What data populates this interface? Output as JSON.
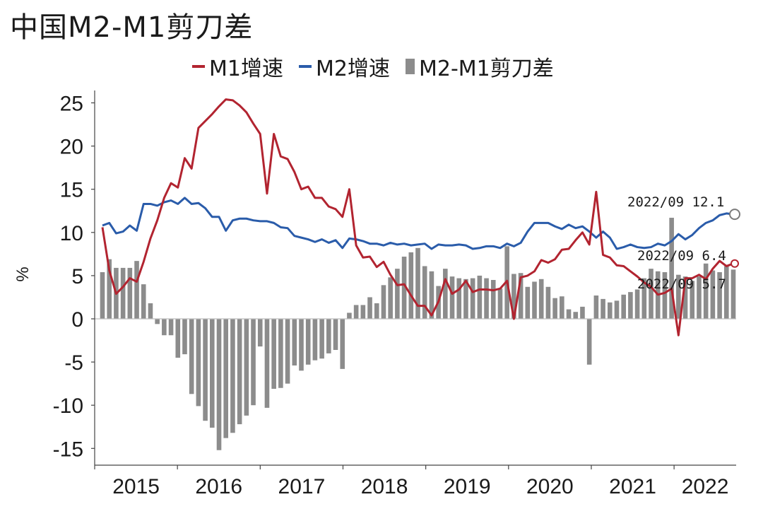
{
  "title": "中国M2-M1剪刀差",
  "legend": [
    {
      "label": "M1增速",
      "color": "#b22430",
      "kind": "line"
    },
    {
      "label": "M2增速",
      "color": "#2a5caa",
      "kind": "line"
    },
    {
      "label": "M2-M1剪刀差",
      "color": "#8c8c8c",
      "kind": "bar"
    }
  ],
  "chart_data": {
    "type": "bar+line",
    "title": "中国M2-M1剪刀差",
    "ylabel": "%",
    "ylim": [
      -16,
      26
    ],
    "yticks": [
      25,
      20,
      15,
      10,
      5,
      0,
      -5,
      -10,
      -15
    ],
    "xstart": "2015-01",
    "xend": "2022-09",
    "xtick_labels": [
      "2015",
      "2016",
      "2017",
      "2018",
      "2019",
      "2020",
      "2021",
      "2022"
    ],
    "series": [
      {
        "name": "M1增速",
        "type": "line",
        "color": "#b22430",
        "values": [
          10.6,
          5.6,
          2.9,
          3.7,
          4.7,
          4.3,
          6.6,
          9.3,
          11.4,
          14.0,
          15.7,
          15.2,
          18.6,
          17.4,
          22.1,
          22.9,
          23.7,
          24.6,
          25.4,
          25.3,
          24.7,
          23.9,
          22.6,
          21.4,
          14.5,
          21.4,
          18.8,
          18.5,
          17.0,
          15.0,
          15.3,
          14.0,
          14.0,
          13.0,
          12.7,
          11.8,
          15.0,
          8.5,
          7.1,
          7.2,
          6.0,
          6.6,
          5.1,
          3.9,
          4.0,
          2.7,
          1.5,
          1.5,
          0.4,
          2.0,
          4.6,
          2.9,
          3.4,
          4.4,
          3.1,
          3.4,
          3.4,
          3.3,
          3.5,
          4.4,
          0.0,
          4.8,
          5.0,
          5.5,
          6.8,
          6.5,
          6.9,
          8.0,
          8.1,
          9.1,
          10.0,
          8.6,
          14.7,
          7.4,
          7.1,
          6.2,
          6.1,
          5.5,
          4.9,
          4.2,
          3.7,
          2.8,
          3.0,
          3.5,
          -1.9,
          4.7,
          4.7,
          5.1,
          4.6,
          5.8,
          6.7,
          6.1,
          6.4
        ]
      },
      {
        "name": "M2增速",
        "type": "line",
        "color": "#2a5caa",
        "values": [
          10.8,
          11.1,
          9.9,
          10.1,
          10.8,
          10.2,
          13.3,
          13.3,
          13.1,
          13.5,
          13.7,
          13.3,
          14.0,
          13.3,
          13.4,
          12.8,
          11.8,
          11.8,
          10.2,
          11.4,
          11.6,
          11.6,
          11.4,
          11.3,
          11.3,
          11.1,
          10.6,
          10.5,
          9.6,
          9.4,
          9.2,
          8.9,
          9.2,
          8.8,
          9.1,
          8.2,
          9.3,
          9.2,
          9.0,
          8.7,
          8.7,
          8.5,
          8.8,
          8.6,
          8.7,
          8.5,
          8.6,
          8.7,
          8.1,
          8.6,
          8.5,
          8.5,
          8.6,
          8.5,
          8.1,
          8.2,
          8.4,
          8.4,
          8.2,
          8.7,
          8.4,
          8.8,
          10.1,
          11.1,
          11.1,
          11.1,
          10.7,
          10.4,
          10.9,
          10.5,
          10.7,
          10.1,
          9.4,
          10.1,
          9.4,
          8.1,
          8.3,
          8.6,
          8.3,
          8.2,
          8.3,
          8.7,
          8.5,
          9.0,
          9.8,
          9.2,
          9.7,
          10.5,
          11.1,
          11.4,
          12.0,
          12.2,
          12.1
        ]
      },
      {
        "name": "M2-M1剪刀差",
        "type": "bar",
        "color": "#8c8c8c",
        "values": [
          5.4,
          6.9,
          5.9,
          5.9,
          5.9,
          6.7,
          4.0,
          1.8,
          -0.6,
          -1.9,
          -1.9,
          -4.5,
          -4.1,
          -8.7,
          -10.1,
          -11.8,
          -12.6,
          -15.2,
          -13.8,
          -13.2,
          -12.2,
          -11.2,
          -10.0,
          -3.2,
          -10.3,
          -8.1,
          -8.0,
          -7.5,
          -5.4,
          -6.0,
          -5.3,
          -4.8,
          -4.6,
          -4.0,
          -3.6,
          -5.8,
          0.7,
          1.6,
          1.6,
          2.5,
          1.8,
          3.9,
          4.8,
          5.8,
          7.2,
          7.7,
          8.2,
          6.1,
          5.5,
          3.8,
          5.8,
          4.9,
          4.7,
          4.6,
          4.7,
          5.0,
          4.7,
          4.5,
          3.5,
          8.4,
          5.2,
          5.3,
          3.7,
          4.3,
          4.6,
          3.7,
          2.4,
          2.6,
          1.1,
          0.8,
          1.4,
          -5.3,
          2.7,
          2.3,
          1.9,
          2.1,
          2.8,
          3.1,
          3.4,
          4.7,
          5.8,
          5.5,
          5.4,
          11.7,
          5.1,
          4.9,
          4.4,
          4.9,
          6.4,
          5.6,
          5.4,
          6.1,
          5.7
        ]
      }
    ],
    "annotations": [
      {
        "text": "2022/09  12.1",
        "series": "M2增速"
      },
      {
        "text": "2022/09  6.4",
        "series": "M1增速"
      },
      {
        "text": "2022/09  5.7",
        "series": "M2-M1剪刀差"
      }
    ]
  }
}
